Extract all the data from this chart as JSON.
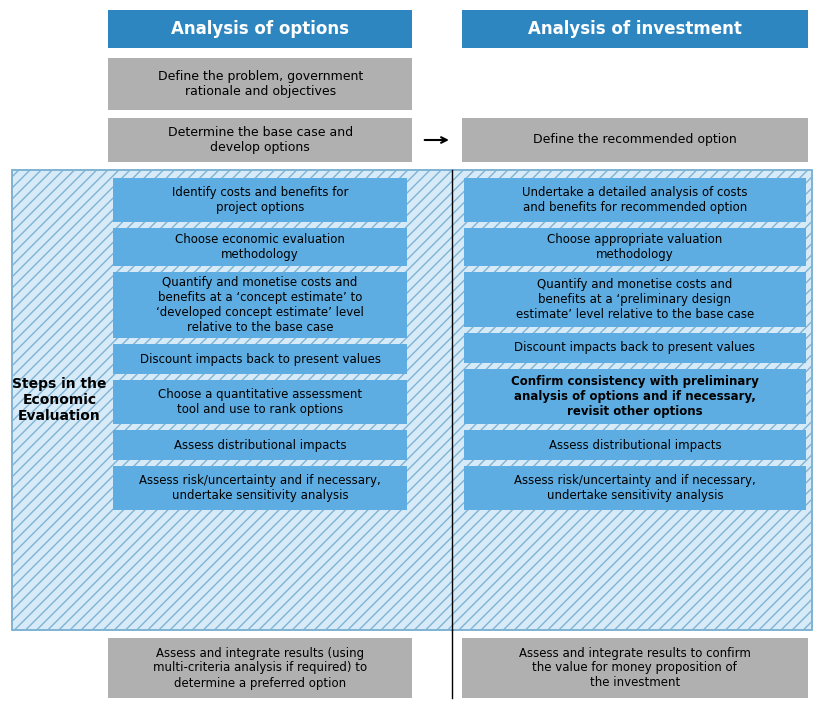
{
  "title_left": "Analysis of options",
  "title_right": "Analysis of investment",
  "side_label": "Steps in the\nEconomic\nEvaluation",
  "header_color": "#2E86C1",
  "header_text_color": "#FFFFFF",
  "box_blue_color": "#5DADE2",
  "box_gray_color": "#A9A9A9",
  "hatch_bg_color": "#D6EAF8",
  "hatch_border_color": "#7FB3D3",
  "hatch_color": "#7FB3D3",
  "gray_boxes_left": [
    "Define the problem, government\nrationale and objectives",
    "Determine the base case and\ndevelop options"
  ],
  "blue_boxes_left": [
    "Identify costs and benefits for\nproject options",
    "Choose economic evaluation\nmethodology",
    "Quantify and monetise costs and\nbenefits at a ‘concept estimate’ to\n‘developed concept estimate’ level\nrelative to the base case",
    "Discount impacts back to present values",
    "Choose a quantitative assessment\ntool and use to rank options",
    "Assess distributional impacts",
    "Assess risk/uncertainty and if necessary,\nundertake sensitivity analysis"
  ],
  "gray_boxes_right": [
    "Define the recommended option"
  ],
  "blue_boxes_right": [
    "Undertake a detailed analysis of costs\nand benefits for recommended option",
    "Choose appropriate valuation\nmethodology",
    "Quantify and monetise costs and\nbenefits at a ‘preliminary design\nestimate’ level relative to the base case",
    "Discount impacts back to present values",
    "Confirm consistency with preliminary\nanalysis of options and if necessary,\nrevisit other options",
    "Assess distributional impacts",
    "Assess risk/uncertainty and if necessary,\nundertake sensitivity analysis"
  ],
  "bottom_box_left": "Assess and integrate results (using\nmulti-criteria analysis if required) to\ndetermine a preferred option",
  "bottom_box_right": "Assess and integrate results to confirm\nthe value for money proposition of\nthe investment"
}
